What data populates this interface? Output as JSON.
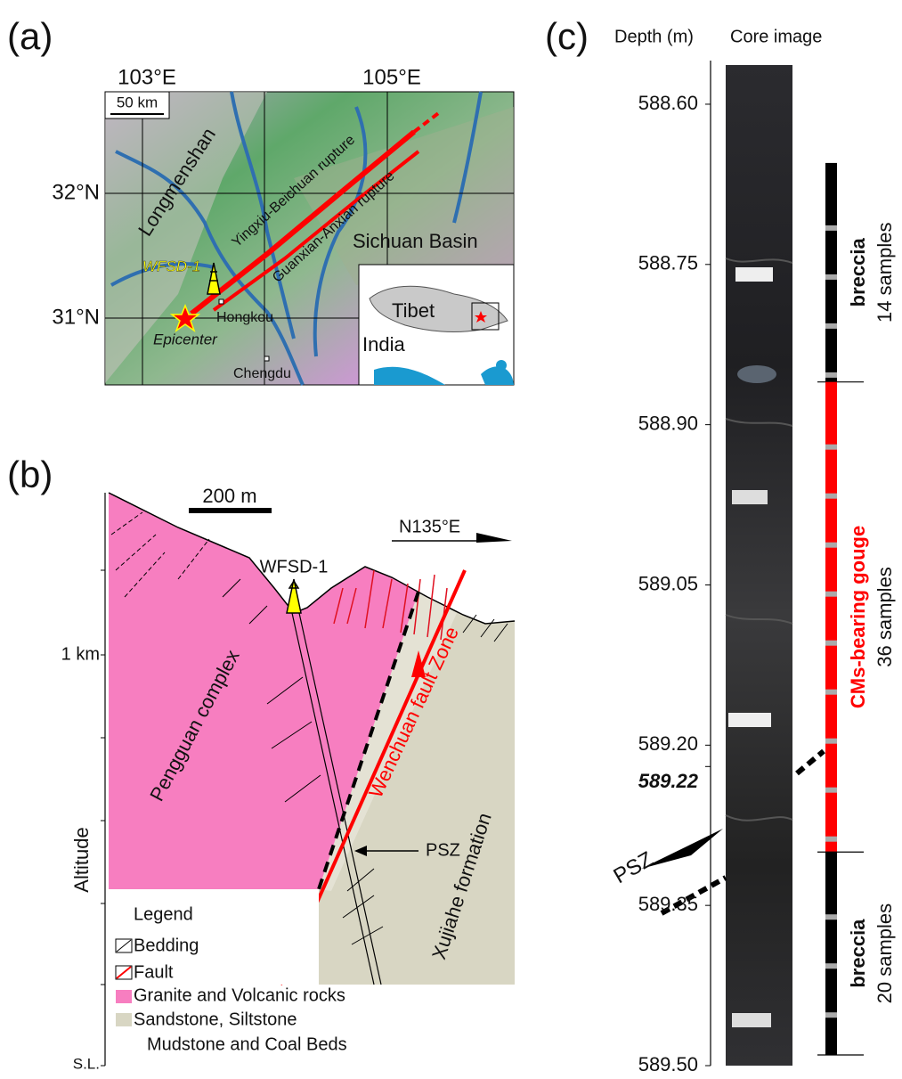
{
  "panel_a": {
    "label": "(a)",
    "longitudes": [
      "103°E",
      "105°E"
    ],
    "latitudes": [
      "32°N",
      "31°N"
    ],
    "scale_bar": "50 km",
    "places": {
      "range": "Longmenshan",
      "rupture_1": "Yingxiu-Beichuan rupture",
      "rupture_2": "Guanxian-Anxian rupture",
      "basin": "Sichuan Basin",
      "well": "WFSD-1",
      "epicenter": "Epicenter",
      "town_1": "Hongkou",
      "town_2": "Chengdu"
    },
    "inset": {
      "region_1": "Tibet",
      "region_2": "India"
    }
  },
  "panel_b": {
    "label": "(b)",
    "scale_bar": "200 m",
    "direction": "N135°E",
    "well": "WFSD-1",
    "depth_tick": "1 km",
    "axis_title": "Altitude",
    "sea_level": "S.L.",
    "units": {
      "hanging_wall": "Pengguan complex",
      "fault_zone": "Wenchuan fault Zone",
      "slip_zone": "PSZ",
      "footwall": "Xujiahe formation"
    },
    "legend": {
      "title": "Legend",
      "items": [
        "Bedding",
        "Fault",
        "Granite and Volcanic rocks",
        "Sandstone, Siltstone",
        "Mudstone and Coal Beds"
      ]
    }
  },
  "panel_c": {
    "label": "(c)",
    "depth_header": "Depth (m)",
    "image_header": "Core image",
    "ylim": [
      588.56,
      589.5
    ],
    "yticks": [
      {
        "value": 588.6,
        "label": "588.60"
      },
      588.75,
      {
        "value": 588.9,
        "label": "588.90"
      },
      589.05,
      {
        "value": 589.2,
        "label": "589.20"
      },
      589.35,
      {
        "value": 589.5,
        "label": "589.50"
      }
    ],
    "psz_depth": 589.22,
    "psz": "PSZ",
    "intervals": [
      {
        "name": "breccia",
        "samples": "14 samples",
        "top": 588.655,
        "bottom": 588.86,
        "color": "#000000"
      },
      {
        "name": "CMs-bearing gouge",
        "samples": "36 samples",
        "top": 588.86,
        "bottom": 589.3,
        "color": "#ff0000"
      },
      {
        "name": "breccia",
        "samples": "20 samples",
        "top": 589.3,
        "bottom": 589.49,
        "color": "#000000"
      }
    ]
  }
}
